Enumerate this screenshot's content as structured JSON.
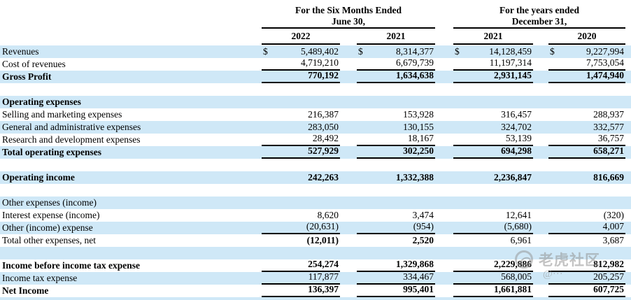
{
  "table": {
    "header": {
      "group1": {
        "line1": "For the Six Months Ended",
        "line2": "June 30,",
        "years": [
          "2022",
          "2021"
        ]
      },
      "group2": {
        "line1": "For the years ended",
        "line2": "December 31,",
        "years": [
          "2021",
          "2020"
        ]
      }
    },
    "columns": [
      "Six Months Ended June 30, 2022",
      "Six Months Ended June 30, 2021",
      "Year ended December 31, 2021",
      "Year ended December 31, 2020"
    ],
    "rows": [
      {
        "type": "data",
        "label": "Revenues",
        "dollar": true,
        "bg": "blue",
        "values": [
          "5,489,402",
          "8,314,377",
          "14,128,459",
          "9,227,994"
        ]
      },
      {
        "type": "data",
        "label": "Cost of revenues",
        "bg": "white",
        "rule": true,
        "values": [
          "4,719,210",
          "6,679,739",
          "11,197,314",
          "7,753,054"
        ]
      },
      {
        "type": "data",
        "label": "Gross Profit",
        "bold": true,
        "bg": "blue",
        "rule": true,
        "values": [
          "770,192",
          "1,634,638",
          "2,931,145",
          "1,474,940"
        ]
      },
      {
        "type": "spacer",
        "bg": "white"
      },
      {
        "type": "section",
        "label": "Operating expenses",
        "bold": true,
        "bg": "blue"
      },
      {
        "type": "data",
        "label": "Selling and marketing expenses",
        "bg": "white",
        "values": [
          "216,387",
          "153,928",
          "316,457",
          "288,937"
        ]
      },
      {
        "type": "data",
        "label": "General and administrative expenses",
        "bg": "blue",
        "values": [
          "283,050",
          "130,155",
          "324,702",
          "332,577"
        ]
      },
      {
        "type": "data",
        "label": "Research and development expenses",
        "bg": "white",
        "rule": true,
        "values": [
          "28,492",
          "18,167",
          "53,139",
          "36,757"
        ]
      },
      {
        "type": "data",
        "label": "Total operating expenses",
        "bold": true,
        "bg": "blue",
        "rule": true,
        "values": [
          "527,929",
          "302,250",
          "694,298",
          "658,271"
        ]
      },
      {
        "type": "spacer",
        "bg": "white"
      },
      {
        "type": "data",
        "label": "Operating income",
        "bold": true,
        "bg": "blue",
        "values": [
          "242,263",
          "1,332,388",
          "2,236,847",
          "816,669"
        ]
      },
      {
        "type": "spacer",
        "bg": "white"
      },
      {
        "type": "section",
        "label": "Other expenses (income)",
        "bg": "blue"
      },
      {
        "type": "data",
        "label": "Interest expense (income)",
        "bg": "white",
        "values": [
          "8,620",
          "3,474",
          "12,641",
          "(320)"
        ]
      },
      {
        "type": "data",
        "label": "Other (income) expense",
        "bg": "blue",
        "rule": true,
        "values": [
          "(20,631)",
          "(954)",
          "(5,680)",
          "4,007"
        ]
      },
      {
        "type": "data",
        "label": "Total other expenses, net",
        "bg": "white",
        "bold_values": [
          true,
          true,
          false,
          false
        ],
        "values": [
          "(12,011)",
          "2,520",
          "6,961",
          "3,687"
        ]
      },
      {
        "type": "spacer",
        "bg": "blue"
      },
      {
        "type": "data",
        "label": "Income before income tax expense",
        "bold": true,
        "bg": "white",
        "rule": true,
        "values": [
          "254,274",
          "1,329,868",
          "2,229,886",
          "812,982"
        ]
      },
      {
        "type": "data",
        "label": "Income tax expense",
        "bg": "blue",
        "rule": true,
        "values": [
          "117,877",
          "334,467",
          "568,005",
          "205,257"
        ]
      },
      {
        "type": "data",
        "label": "Net Income",
        "bold": true,
        "bg": "white",
        "rule": true,
        "values": [
          "136,397",
          "995,401",
          "1,661,881",
          "607,725"
        ]
      },
      {
        "type": "spacer",
        "bg": "blue",
        "small": true
      }
    ],
    "colors": {
      "stripe_blue": "#cfe8f7",
      "rule_black": "#000000"
    }
  },
  "watermark": {
    "community_name": "老虎社区",
    "handle": "@···"
  }
}
